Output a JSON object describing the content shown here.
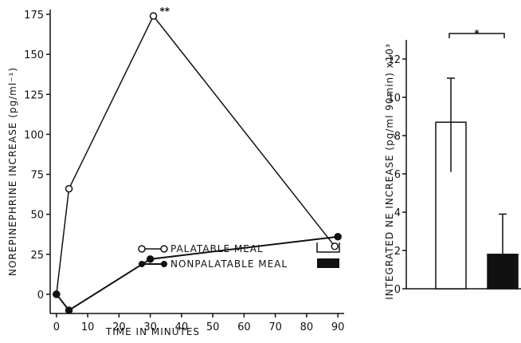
{
  "chart_data": [
    {
      "type": "line",
      "ylabel": "NOREPINEPHRINE  INCREASE  (pg/ml⁻¹)",
      "xlabel": "TIME  IN  MINUTES",
      "xlim": [
        -2,
        92
      ],
      "ylim": [
        -12,
        178
      ],
      "xticks": [
        0,
        10,
        20,
        30,
        40,
        50,
        60,
        70,
        80,
        90
      ],
      "xtick_labels": [
        "0",
        "10",
        "20",
        "30",
        "40",
        "50",
        "60",
        "70",
        "80",
        "90"
      ],
      "yticks": [
        0,
        25,
        50,
        75,
        100,
        125,
        150,
        175
      ],
      "ytick_labels": [
        "0",
        "25",
        "50",
        "75",
        "100",
        "125",
        "150",
        "175"
      ],
      "grid": false,
      "legend_position": "bottom-right",
      "series": [
        {
          "name": "PALATABLE MEAL",
          "marker": "open-circle",
          "x": [
            0,
            4,
            31,
            89
          ],
          "y": [
            0,
            66,
            174,
            30
          ]
        },
        {
          "name": "NONPALATABLE MEAL",
          "marker": "filled-circle",
          "x": [
            0,
            4,
            30,
            90
          ],
          "y": [
            0,
            -10,
            22,
            36
          ]
        }
      ],
      "annotations": [
        {
          "text": "**",
          "x": 31,
          "y": 174
        }
      ]
    },
    {
      "type": "bar",
      "ylabel": "INTEGRATED  NE  INCREASE  (pg/ml 90min) x10³",
      "ylim": [
        0,
        13
      ],
      "yticks": [
        0,
        2,
        4,
        6,
        8,
        10,
        12
      ],
      "ytick_labels": [
        "0",
        "2",
        "4",
        "6",
        "8",
        "10",
        "12"
      ],
      "bars": [
        {
          "name": "PALATABLE MEAL",
          "value": 8.7,
          "err_low": 6.1,
          "err_high": 11.0,
          "fill": "#ffffff"
        },
        {
          "name": "NONPALATABLE MEAL",
          "value": 1.8,
          "err_low": 1.8,
          "err_high": 3.9,
          "fill": "#111111"
        }
      ],
      "significance": "*"
    }
  ]
}
